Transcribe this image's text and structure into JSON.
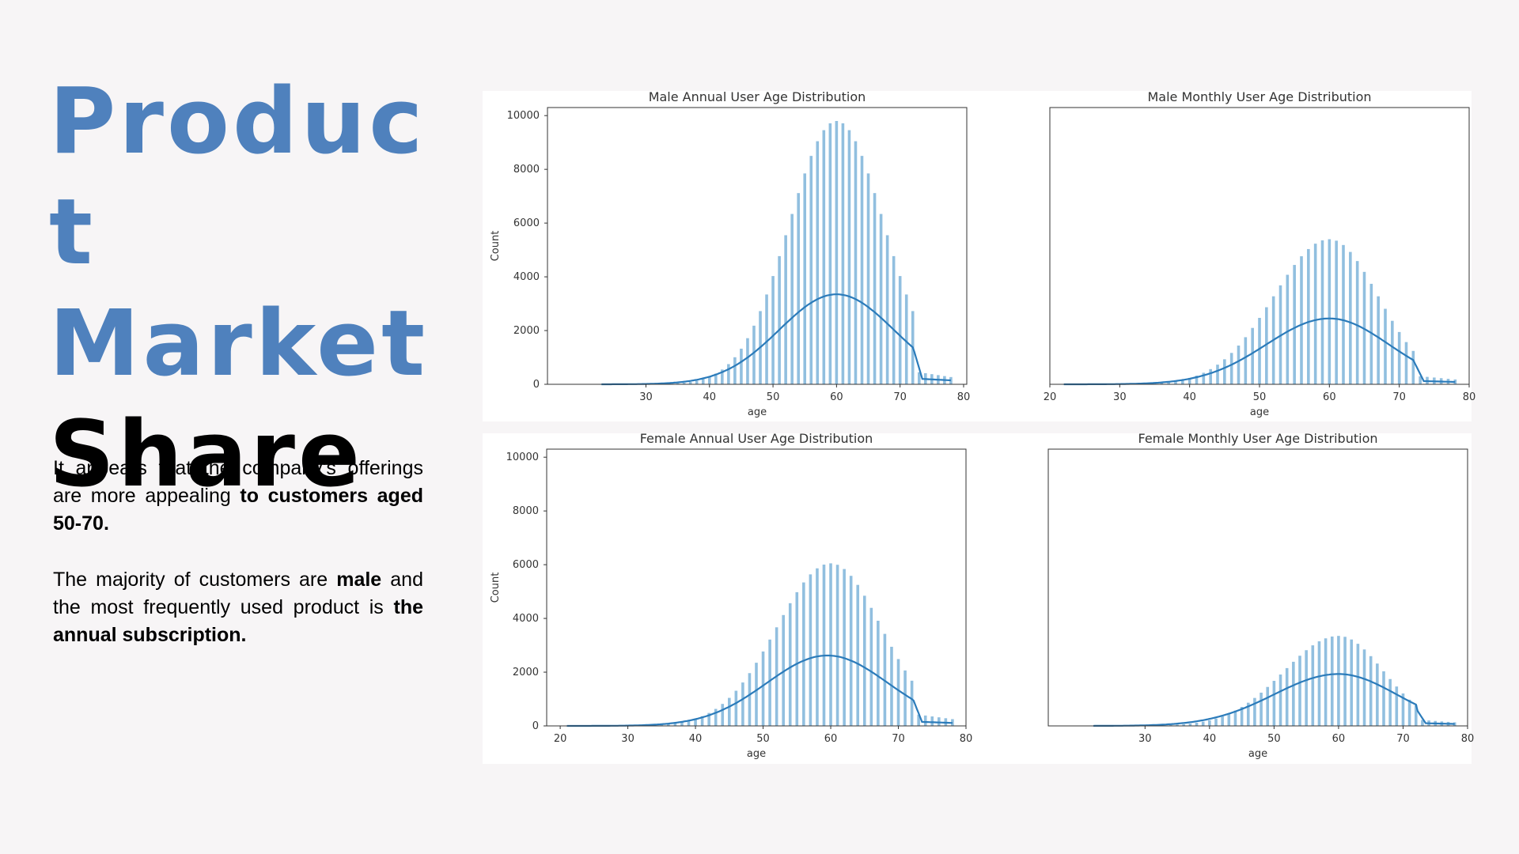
{
  "slide": {
    "title_lines": [
      "Produc",
      "t",
      "Market",
      "Share"
    ],
    "paragraph1": {
      "text_a": "It appears that the company's offerings are more appealing ",
      "bold_a": "to customers aged 50-70."
    },
    "paragraph2": {
      "text_a": "The majority of customers are ",
      "bold_a": "male",
      "text_b": " and the most frequently used product is ",
      "bold_b": "the annual subscription."
    }
  },
  "colors": {
    "title_blue": "#4f81bd",
    "bar": "#91bfdf",
    "kde": "#2b7bba"
  },
  "chart_data": [
    {
      "type": "bar",
      "title": "Male Annual User Age Distribution",
      "xlabel": "age",
      "ylabel": "Count",
      "xlim": [
        14.5,
        80.5
      ],
      "ylim": [
        0,
        10300
      ],
      "xticks": [
        30,
        40,
        50,
        60,
        70,
        80
      ],
      "yticks": [
        0,
        2000,
        4000,
        6000,
        8000,
        10000
      ],
      "grid": false,
      "bins": {
        "start": 23,
        "end": 78,
        "peak_age": 60,
        "peak_count": 9800,
        "spread_low": 7.5,
        "spread_high": 7.5,
        "cutoff_age": 72,
        "tail_count": 450
      },
      "kde": {
        "peak_age": 60,
        "peak_value": 3350,
        "spread_low": 9,
        "spread_high": 9,
        "cutoff_age": 72,
        "cutoff_value": 1400,
        "tail_value": 200
      }
    },
    {
      "type": "bar",
      "title": "Male Monthly User Age Distribution",
      "xlabel": "age",
      "ylabel": "",
      "xlim": [
        20,
        80
      ],
      "ylim": [
        0,
        10300
      ],
      "xticks": [
        20,
        30,
        40,
        50,
        60,
        70,
        80
      ],
      "yticks": [],
      "grid": false,
      "bins": {
        "start": 22,
        "end": 78,
        "peak_age": 60,
        "peak_count": 5400,
        "spread_low": 8,
        "spread_high": 7,
        "cutoff_age": 72,
        "tail_count": 300
      },
      "kde": {
        "peak_age": 60,
        "peak_value": 2450,
        "spread_low": 9,
        "spread_high": 8.5,
        "cutoff_age": 72,
        "cutoff_value": 900,
        "tail_value": 120
      }
    },
    {
      "type": "bar",
      "title": "Female Annual User Age Distribution",
      "xlabel": "age",
      "ylabel": "Count",
      "xlim": [
        18,
        80
      ],
      "ylim": [
        0,
        10300
      ],
      "xticks": [
        20,
        30,
        40,
        50,
        60,
        70,
        80
      ],
      "yticks": [
        0,
        2000,
        4000,
        6000,
        8000,
        10000
      ],
      "grid": false,
      "bins": {
        "start": 21,
        "end": 78,
        "peak_age": 60,
        "peak_count": 6050,
        "spread_low": 8,
        "spread_high": 7.5,
        "cutoff_age": 72,
        "tail_count": 420
      },
      "kde": {
        "peak_age": 59.5,
        "peak_value": 2620,
        "spread_low": 9,
        "spread_high": 9,
        "cutoff_age": 72,
        "cutoff_value": 1100,
        "tail_value": 150
      }
    },
    {
      "type": "bar",
      "title": "Female Monthly User Age Distribution",
      "xlabel": "age",
      "ylabel": "",
      "xlim": [
        15,
        80
      ],
      "ylim": [
        0,
        10300
      ],
      "xticks": [
        30,
        40,
        50,
        60,
        70,
        80
      ],
      "yticks": [],
      "grid": false,
      "bins": {
        "start": 22,
        "end": 78,
        "peak_age": 60,
        "peak_count": 3350,
        "spread_low": 8.5,
        "spread_high": 7,
        "cutoff_age": 72,
        "tail_count": 220
      },
      "kde": {
        "peak_age": 60,
        "peak_value": 1930,
        "spread_low": 10,
        "spread_high": 9,
        "cutoff_age": 72,
        "cutoff_value": 650,
        "tail_value": 100
      }
    }
  ]
}
